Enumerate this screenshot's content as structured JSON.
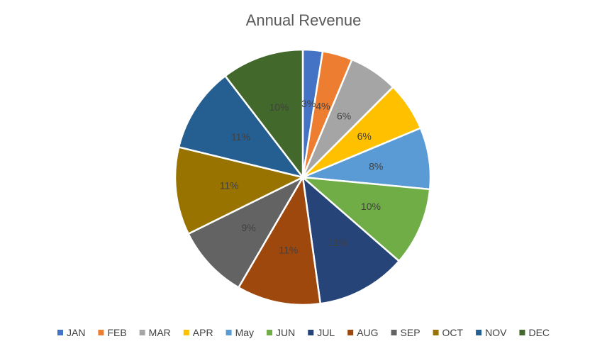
{
  "chart_data": {
    "type": "pie",
    "title": "Annual Revenue",
    "categories": [
      "JAN",
      "FEB",
      "MAR",
      "APR",
      "May",
      "JUN",
      "JUL",
      "AUG",
      "SEP",
      "OCT",
      "NOV",
      "DEC"
    ],
    "values": [
      2.5,
      3.8,
      6.2,
      6.2,
      7.8,
      9.9,
      11.4,
      10.6,
      9.3,
      11.1,
      10.8,
      10.4
    ],
    "labels": [
      "3%",
      "4%",
      "6%",
      "6%",
      "8%",
      "10%",
      "11%",
      "11%",
      "9%",
      "11%",
      "11%",
      "10%"
    ],
    "colors": [
      "#4472C4",
      "#ED7D31",
      "#A5A5A5",
      "#FFC000",
      "#5B9BD5",
      "#70AD47",
      "#264478",
      "#9E480E",
      "#636363",
      "#997300",
      "#255E91",
      "#43682B"
    ],
    "legend_position": "bottom"
  }
}
